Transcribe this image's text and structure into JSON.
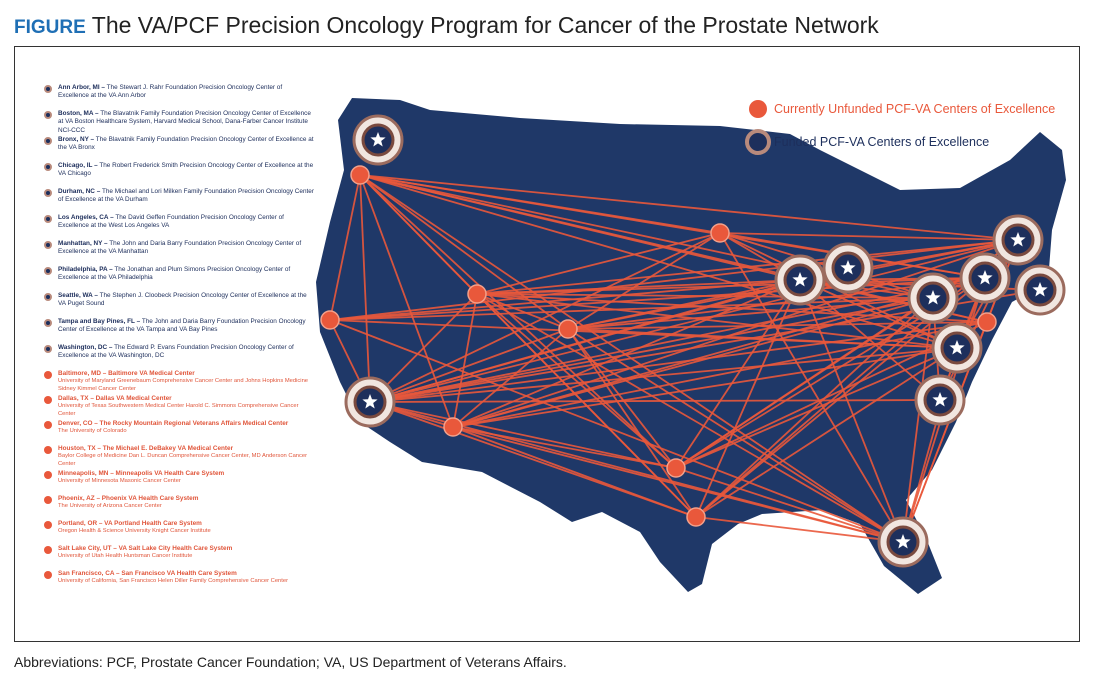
{
  "header": {
    "label": "FIGURE",
    "title": "The VA/PCF Precision Oncology Program for Cancer of the Prostate Network"
  },
  "legend": {
    "unfunded": "Currently Unfunded PCF-VA Centers of Excellence",
    "funded": "Funded PCF-VA Centers of Excellence"
  },
  "funded_centers": [
    {
      "heading": "Ann Arbor, MI –",
      "text": "The Stewart J. Rahr Foundation Precision Oncology Center of Excellence at the VA Ann Arbor"
    },
    {
      "heading": "Boston, MA –",
      "text": "The Blavatnik Family Foundation Precision Oncology Center of Excellence at VA Boston Healthcare System, Harvard Medical School, Dana-Farber Cancer Institute NCI-CCC"
    },
    {
      "heading": "Bronx, NY –",
      "text": "The Blavatnik Family Foundation Precision Oncology Center of Excellence at the VA Bronx"
    },
    {
      "heading": "Chicago, IL –",
      "text": "The Robert Frederick Smith Precision Oncology Center of Excellence at the VA Chicago"
    },
    {
      "heading": "Durham, NC –",
      "text": "The Michael and Lori Milken Family Foundation Precision Oncology Center of Excellence at the VA Durham"
    },
    {
      "heading": "Los Angeles, CA –",
      "text": "The David Geffen Foundation Precision Oncology Center of Excellence at the West Los Angeles VA"
    },
    {
      "heading": "Manhattan, NY –",
      "text": "The John and Daria Barry Foundation Precision Oncology Center of Excellence at the VA Manhattan"
    },
    {
      "heading": "Philadelphia, PA –",
      "text": "The Jonathan and Plum Simons Precision Oncology Center of Excellence at the VA Philadelphia"
    },
    {
      "heading": "Seattle, WA –",
      "text": "The Stephen J. Cloobeck Precision Oncology Center of Excellence at the VA Puget Sound"
    },
    {
      "heading": "Tampa and Bay Pines, FL –",
      "text": "The John and Daria Barry Foundation Precision Oncology Center of Excellence at the VA Tampa and VA Bay Pines"
    },
    {
      "heading": "Washington, DC –",
      "text": "The Edward P. Evans Foundation Precision Oncology Center of Excellence at the VA Washington, DC"
    }
  ],
  "unfunded_centers": [
    {
      "heading": "Baltimore, MD – Baltimore VA Medical Center",
      "affiliation": "University of Maryland Greenebaum Comprehensive Cancer Center and Johns Hopkins Medicine Sidney Kimmel Cancer Center"
    },
    {
      "heading": "Dallas, TX – Dallas VA Medical Center",
      "affiliation": "University of Texas Southwestern Medical Center Harold C. Simmons Comprehensive Cancer Center"
    },
    {
      "heading": "Denver, CO – The Rocky Mountain Regional Veterans Affairs Medical Center",
      "affiliation": "The University of Colorado"
    },
    {
      "heading": "Houston, TX – The Michael E. DeBakey VA Medical Center",
      "affiliation": "Baylor College of Medicine Dan L. Duncan Comprehensive Cancer Center, MD Anderson Cancer Center"
    },
    {
      "heading": "Minneapolis, MN – Minneapolis VA Health Care System",
      "affiliation": "University of Minnesota Masonic Cancer Center"
    },
    {
      "heading": "Phoenix, AZ – Phoenix VA Health Care System",
      "affiliation": "The University of Arizona Cancer Center"
    },
    {
      "heading": "Portland, OR – VA Portland Health Care System",
      "affiliation": "Oregon Health & Science University Knight Cancer Institute"
    },
    {
      "heading": "Salt Lake City, UT – VA Salt Lake City Health Care System",
      "affiliation": "University of Utah Health Huntsman Cancer Institute"
    },
    {
      "heading": "San Francisco, CA – San Francisco VA Health Care System",
      "affiliation": "University of California, San Francisco Helen Diller Family Comprehensive Cancer Center"
    }
  ],
  "footnote": "Abbreviations: PCF, Prostate Cancer Foundation; VA, US Department of Veterans Affairs."
}
